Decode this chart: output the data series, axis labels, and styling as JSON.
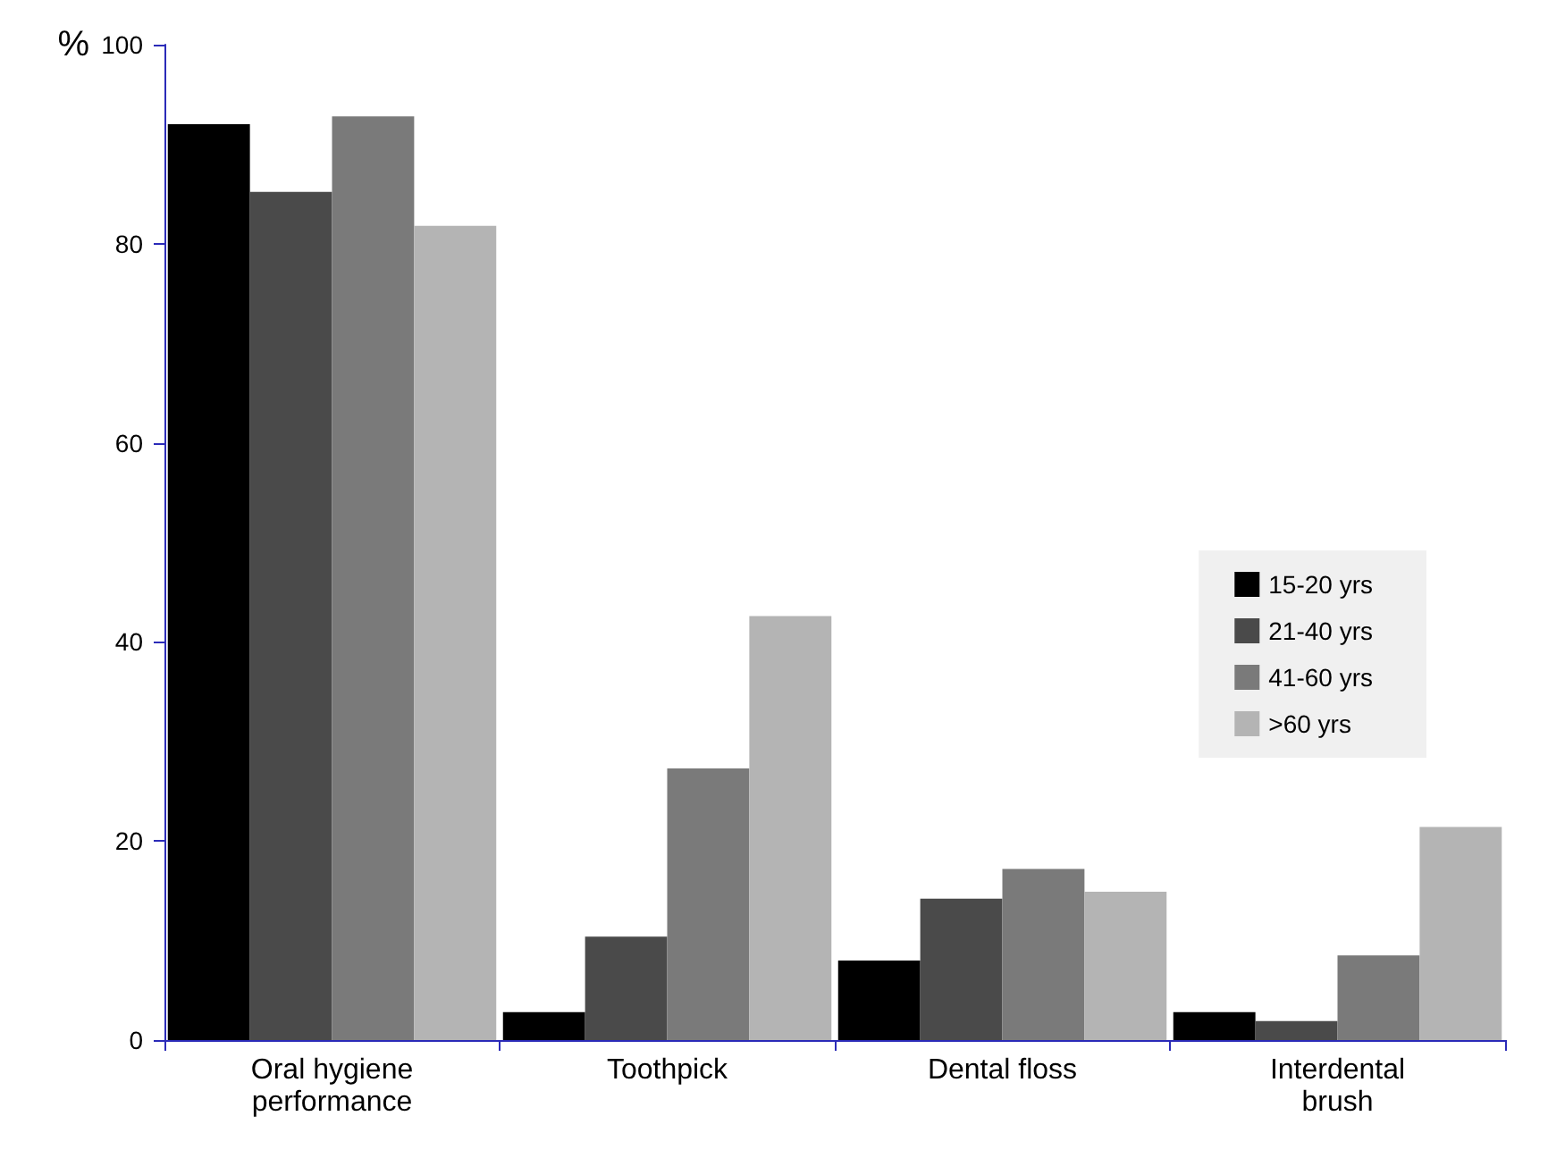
{
  "chart_data": {
    "type": "bar",
    "ylabel": "%",
    "categories": [
      "Oral hygiene\nperformance",
      "Toothpick",
      "Dental floss",
      "Interdental\nbrush"
    ],
    "series": [
      {
        "name": "15-20 yrs",
        "color": "#000000",
        "values": [
          92,
          2.8,
          8,
          2.8
        ]
      },
      {
        "name": "21-40 yrs",
        "color": "#4a4a4a",
        "values": [
          85.2,
          10.4,
          14.2,
          1.9
        ]
      },
      {
        "name": "41-60 yrs",
        "color": "#7a7a7a",
        "values": [
          92.8,
          27.3,
          17.2,
          8.5
        ]
      },
      {
        "name": ">60 yrs",
        "color": "#b4b4b4",
        "values": [
          81.8,
          42.6,
          14.9,
          21.4
        ]
      }
    ],
    "ylim": [
      0,
      100
    ],
    "yticks": [
      0,
      20,
      40,
      60,
      80,
      100
    ],
    "grid": false,
    "legend": "right"
  }
}
